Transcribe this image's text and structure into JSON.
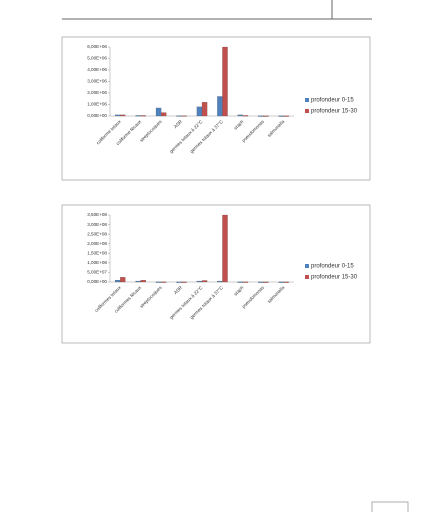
{
  "chart_data": [
    {
      "type": "bar",
      "categories": [
        "coliforme totaux",
        "coliforme fécaux",
        "streptocoques",
        "ASR",
        "germes totaux à 22°C",
        "germes totaux à 37°C",
        "staph",
        "pseudomonas",
        "salmonella"
      ],
      "series": [
        {
          "name": "profondeur 0-15",
          "color": "#4f81bd",
          "values": [
            100000,
            50000,
            700000,
            30000,
            800000,
            1700000,
            100000,
            20000,
            20000
          ]
        },
        {
          "name": "profondeur 15-30",
          "color": "#c0504d",
          "values": [
            100000,
            50000,
            300000,
            30000,
            1200000,
            6000000,
            50000,
            20000,
            20000
          ]
        }
      ],
      "ylim": [
        0,
        6000000
      ],
      "yticks": [
        {
          "value": 0,
          "label": "0,00E+00"
        },
        {
          "value": 1000000,
          "label": "1,00E+06"
        },
        {
          "value": 2000000,
          "label": "2,00E+06"
        },
        {
          "value": 3000000,
          "label": "3,00E+06"
        },
        {
          "value": 4000000,
          "label": "4,00E+06"
        },
        {
          "value": 5000000,
          "label": "5,00E+06"
        },
        {
          "value": 6000000,
          "label": "6,00E+06"
        }
      ],
      "legend": "right"
    },
    {
      "type": "bar",
      "categories": [
        "coliformes totaux",
        "coliformes fécaux",
        "streptocoques",
        "ASR",
        "germes totaux à 22°C",
        "germes totaux à 37°C",
        "staph",
        "pseudomonas",
        "salmonella"
      ],
      "series": [
        {
          "name": "profondeur 0-15",
          "color": "#4f81bd",
          "values": [
            10000000,
            5000000,
            1000000,
            500000,
            5000000,
            5000000,
            1000000,
            500000,
            500000
          ]
        },
        {
          "name": "profondeur 15-30",
          "color": "#c0504d",
          "values": [
            25000000,
            10000000,
            1000000,
            500000,
            8000000,
            350000000,
            1000000,
            500000,
            500000
          ]
        }
      ],
      "ylim": [
        0,
        350000000
      ],
      "yticks": [
        {
          "value": 0,
          "label": "0,00E+00"
        },
        {
          "value": 50000000,
          "label": "5,00E+07"
        },
        {
          "value": 100000000,
          "label": "1,00E+08"
        },
        {
          "value": 150000000,
          "label": "1,50E+08"
        },
        {
          "value": 200000000,
          "label": "2,00E+08"
        },
        {
          "value": 250000000,
          "label": "2,50E+08"
        },
        {
          "value": 300000000,
          "label": "3,00E+08"
        },
        {
          "value": 350000000,
          "label": "3,50E+08"
        }
      ],
      "legend": "right"
    }
  ]
}
